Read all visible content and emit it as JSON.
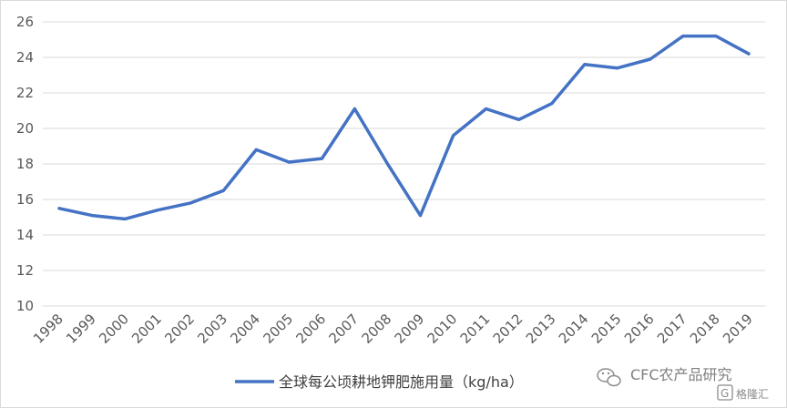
{
  "chart_data": {
    "type": "line",
    "x": [
      "1998",
      "1999",
      "2000",
      "2001",
      "2002",
      "2003",
      "2004",
      "2005",
      "2006",
      "2007",
      "2008",
      "2009",
      "2010",
      "2011",
      "2012",
      "2013",
      "2014",
      "2015",
      "2016",
      "2017",
      "2018",
      "2019"
    ],
    "series": [
      {
        "name": "全球每公顷耕地钾肥施用量（kg/ha）",
        "values": [
          15.5,
          15.1,
          14.9,
          15.4,
          15.8,
          16.5,
          18.8,
          18.1,
          18.3,
          21.1,
          18.0,
          15.1,
          19.6,
          21.1,
          20.5,
          21.4,
          23.6,
          23.4,
          23.9,
          25.2,
          25.2,
          24.2
        ],
        "color": "#4472c4"
      }
    ],
    "yticks": [
      "10",
      "12",
      "14",
      "16",
      "18",
      "20",
      "22",
      "24",
      "26"
    ],
    "ylim": [
      10,
      26
    ],
    "grid": true,
    "legend_position": "bottom"
  },
  "watermark": {
    "text": "CFC农产品研究",
    "icon": "wechat-icon",
    "logo_text": "格隆汇",
    "logo_icon": "gelonghui-logo-icon"
  }
}
